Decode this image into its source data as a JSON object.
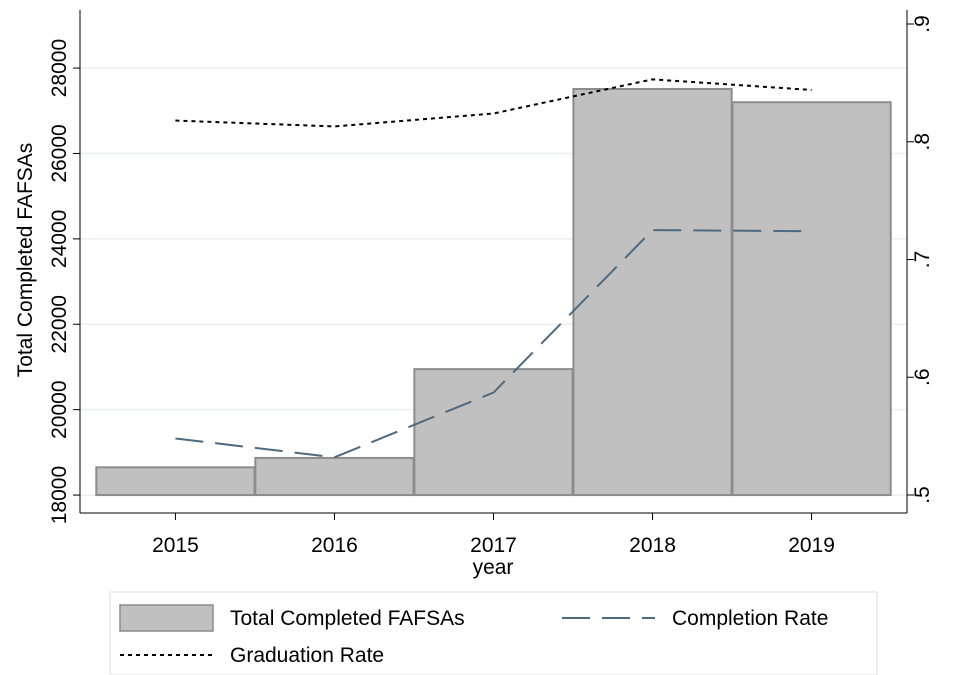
{
  "chart_data": {
    "type": "bar-line",
    "x_label": "year",
    "y_label": "Total Completed FAFSAs",
    "x": [
      2015,
      2016,
      2017,
      2018,
      2019
    ],
    "xlim": [
      2014.4,
      2019.6
    ],
    "xticks": [
      2015,
      2016,
      2017,
      2018,
      2019
    ],
    "ylim": [
      17580,
      29360
    ],
    "yticks": [
      18000,
      20000,
      22000,
      24000,
      26000,
      28000
    ],
    "y2lim": [
      0.4847,
      0.9119
    ],
    "y2ticks": [
      {
        "value": 0.5,
        "label": ".5"
      },
      {
        "value": 0.6,
        "label": ".6"
      },
      {
        "value": 0.7,
        "label": ".7"
      },
      {
        "value": 0.8,
        "label": ".8"
      },
      {
        "value": 0.9,
        "label": ".9"
      }
    ],
    "grid": true,
    "series": [
      {
        "name": "Total Completed FAFSAs",
        "kind": "bar",
        "color": "#c0c0c0",
        "values": [
          18650,
          18870,
          20950,
          27510,
          27200
        ]
      },
      {
        "name": "Completion Rate",
        "kind": "dashed",
        "axis": "y2",
        "color": "#4d6a80",
        "values": [
          0.548,
          0.532,
          0.587,
          0.725,
          0.724
        ]
      },
      {
        "name": "Graduation Rate",
        "kind": "dotted",
        "axis": "y2",
        "color": "#000000",
        "values": [
          0.818,
          0.813,
          0.824,
          0.853,
          0.844
        ]
      }
    ]
  }
}
